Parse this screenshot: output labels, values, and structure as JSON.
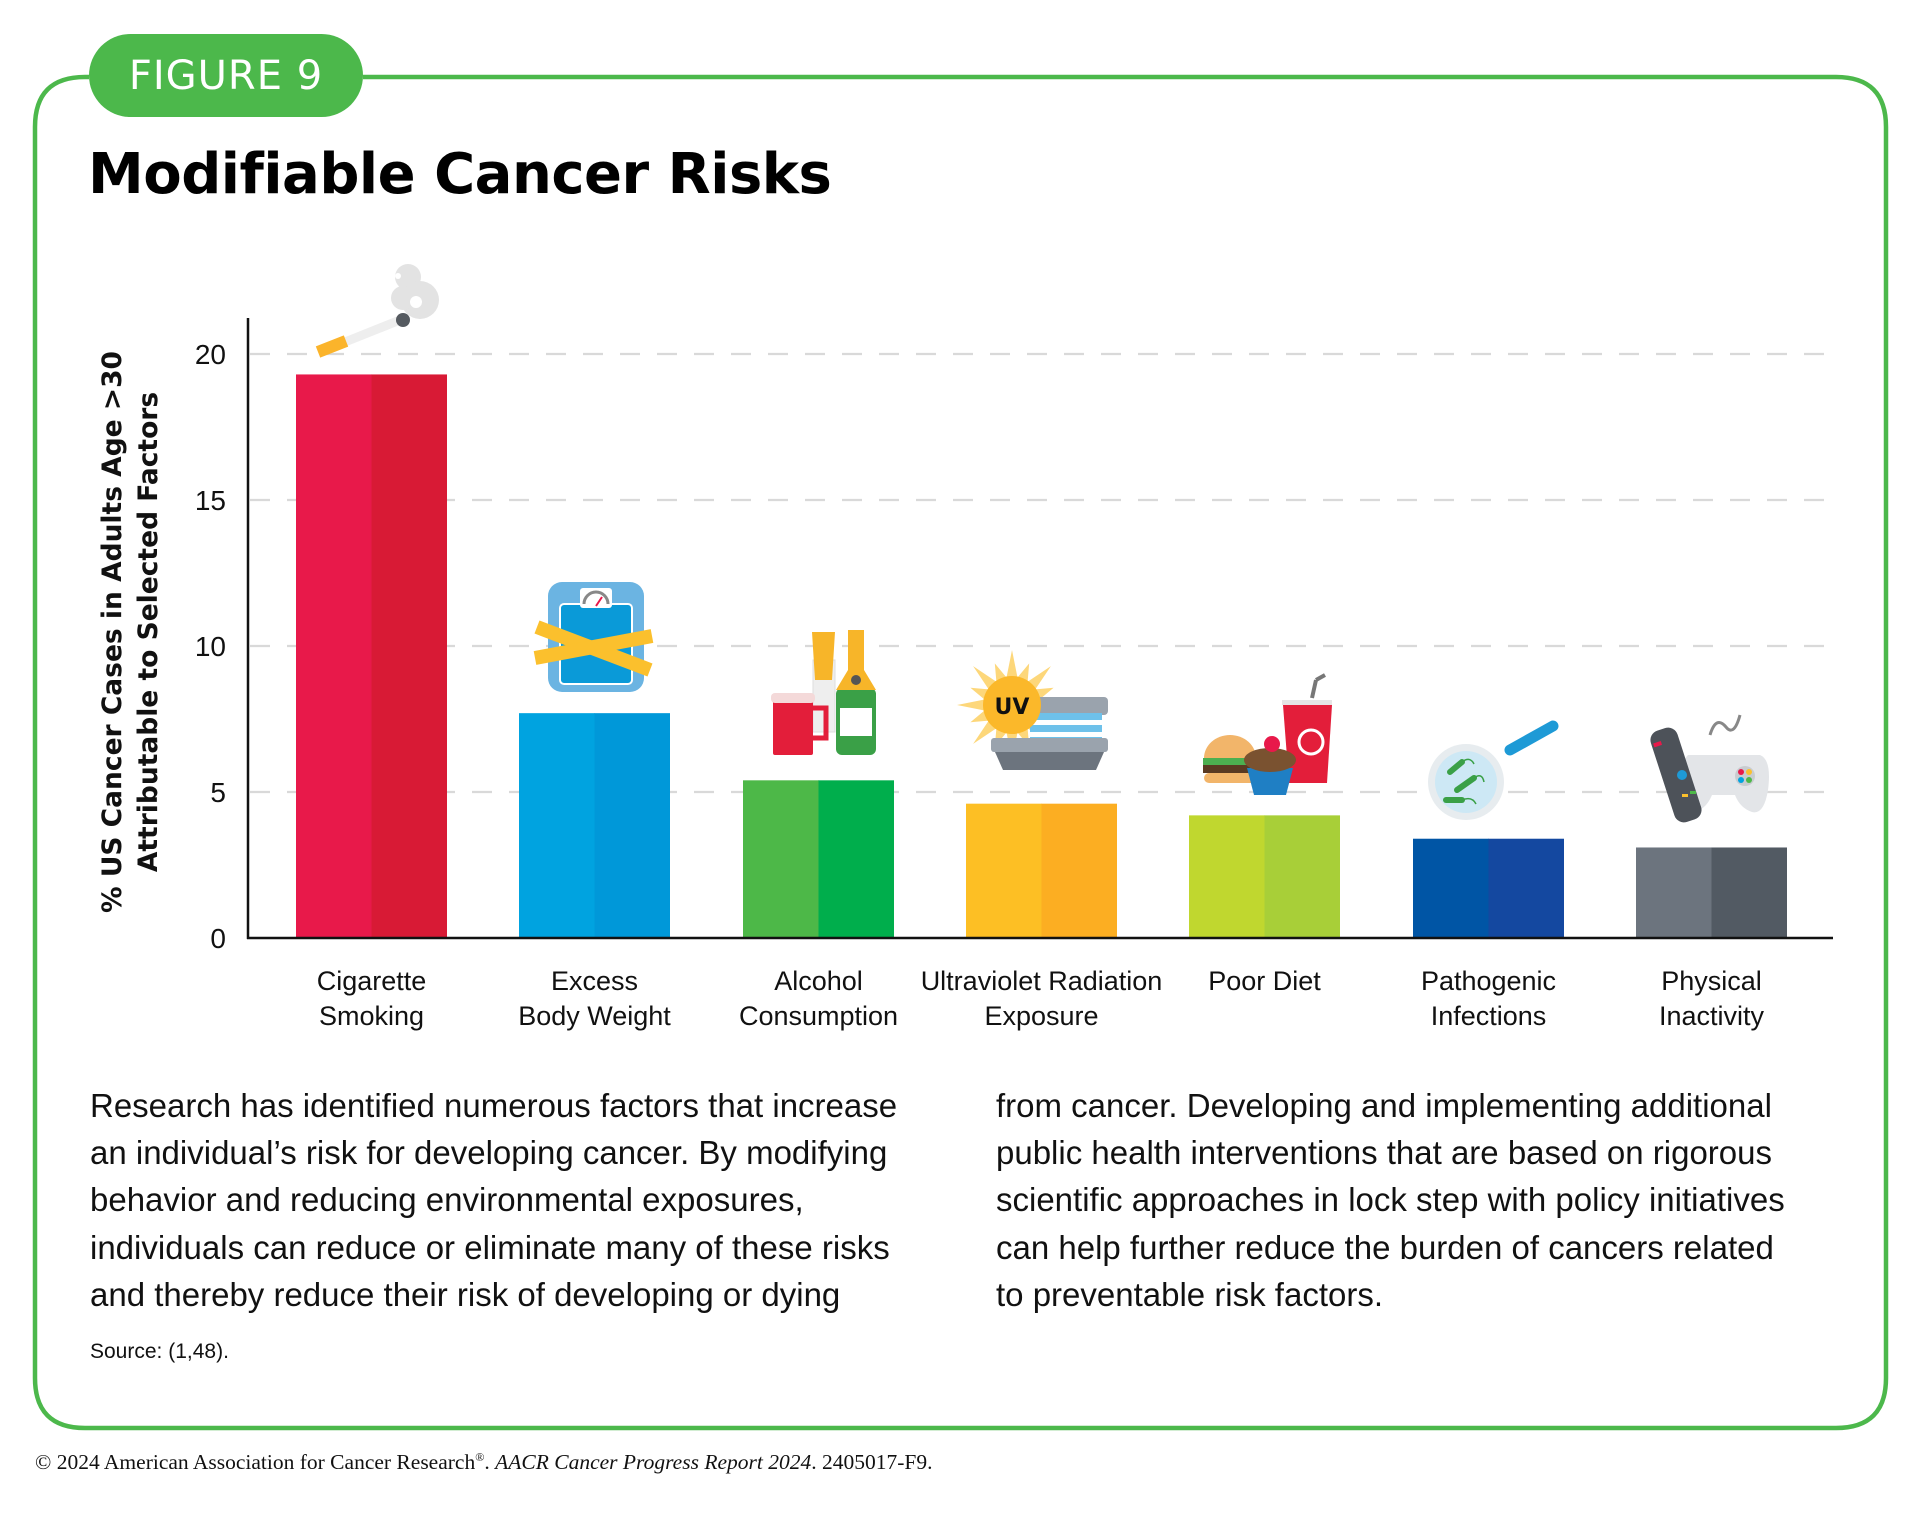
{
  "figure": {
    "label": "FIGURE 9",
    "title": "Modifiable Cancer Risks",
    "accent_color": "#4cb84b"
  },
  "chart_data": {
    "type": "bar",
    "title": "Modifiable Cancer Risks",
    "xlabel": "",
    "ylabel_lines": [
      "% US Cancer Cases in Adults Age >30",
      "Attributable to Selected Factors"
    ],
    "ylim": [
      0,
      21
    ],
    "yticks": [
      0,
      5,
      10,
      15,
      20
    ],
    "grid": true,
    "legend": "none",
    "categories": [
      {
        "lines": [
          "Cigarette",
          "Smoking"
        ],
        "icon": "cigarette-icon"
      },
      {
        "lines": [
          "Excess",
          "Body Weight"
        ],
        "icon": "scale-tape-measure-icon"
      },
      {
        "lines": [
          "Alcohol",
          "Consumption"
        ],
        "icon": "beer-champagne-icon"
      },
      {
        "lines": [
          "Ultraviolet Radiation",
          "Exposure"
        ],
        "icon": "uv-tanning-bed-icon"
      },
      {
        "lines": [
          "Poor Diet"
        ],
        "icon": "fast-food-icon"
      },
      {
        "lines": [
          "Pathogenic",
          "Infections"
        ],
        "icon": "magnified-bacteria-icon"
      },
      {
        "lines": [
          "Physical",
          "Inactivity"
        ],
        "icon": "remote-gamepad-icon"
      }
    ],
    "values": [
      19.3,
      7.7,
      5.4,
      4.6,
      4.2,
      3.4,
      3.1
    ],
    "colors": [
      [
        "#e8194a",
        "#d81a35"
      ],
      [
        "#00a3e0",
        "#0098d9"
      ],
      [
        "#4db848",
        "#00ae4c"
      ],
      [
        "#fdbf24",
        "#fcae22"
      ],
      [
        "#c0d72f",
        "#a8cf38"
      ],
      [
        "#0055a5",
        "#1448a0"
      ],
      [
        "#6c747e",
        "#525a63"
      ]
    ],
    "icon_uv_text": "UV"
  },
  "body_text": {
    "left_lines": [
      "Research has identified numerous factors that increase",
      "an individual’s risk for developing cancer. By modifying",
      "behavior and reducing environmental exposures,",
      "individuals can reduce or eliminate many of these risks",
      "and thereby reduce their risk of developing or dying"
    ],
    "right_lines": [
      "from cancer. Developing and implementing additional",
      "public health interventions that are based on rigorous",
      "scientific approaches in lock step with policy initiatives",
      "can help further reduce the burden of cancers related",
      "to preventable risk factors."
    ]
  },
  "source": "Source: (1,48).",
  "footer": {
    "copyright_prefix": "© 2024 American Association for Cancer Research",
    "registered": "®",
    "separator": ". ",
    "report_name": "AACR Cancer Progress Report 2024",
    "suffix": ". 2405017-F9."
  }
}
